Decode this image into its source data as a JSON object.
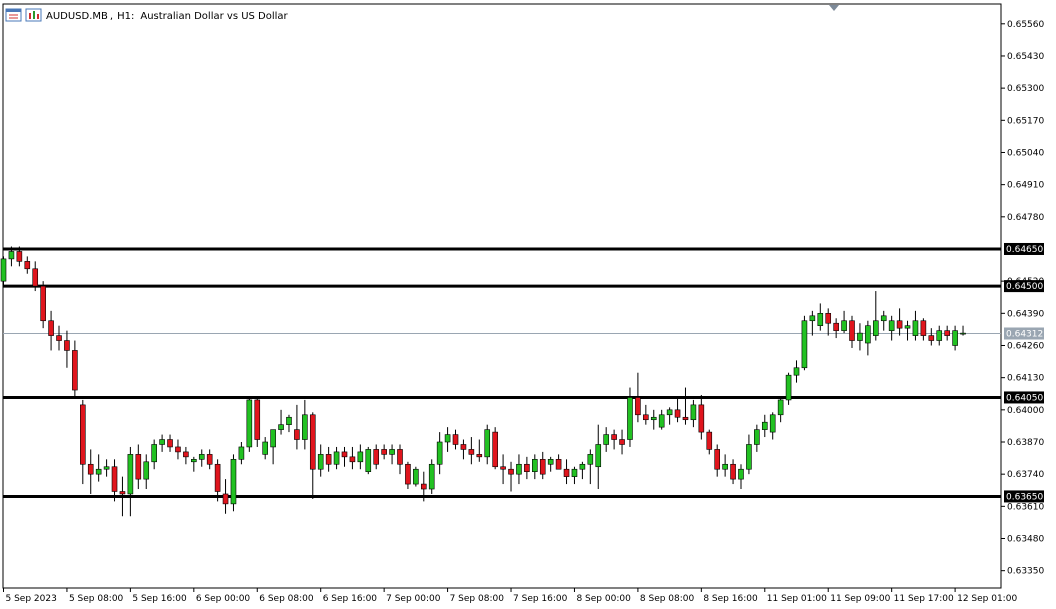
{
  "header": {
    "symbol": "AUDUSD.MB",
    "timeframe": "H1:",
    "description": "Australian Dollar vs US Dollar",
    "icon_names": [
      "window-list-icon",
      "chart-icon"
    ]
  },
  "colors": {
    "bull": "#22c122",
    "bear": "#e0151d",
    "wick": "#000000",
    "grid": "#000000",
    "bid_line": "#9aa6b2",
    "level_line": "#000000",
    "level_label_bg": "#000000",
    "price_label_bg": "#9aa6b2"
  },
  "chart_data": {
    "type": "candlestick",
    "symbol": "AUDUSD.MB",
    "period": "H1",
    "y_axis": {
      "ylim": [
        0.6328,
        0.6564
      ],
      "ticks": [
        "0.65560",
        "0.65430",
        "0.65300",
        "0.65170",
        "0.65040",
        "0.64910",
        "0.64780",
        "0.64520",
        "0.64390",
        "0.64260",
        "0.64130",
        "0.64000",
        "0.63870",
        "0.63740",
        "0.63610",
        "0.63480",
        "0.63350"
      ]
    },
    "x_axis": {
      "ticks": [
        {
          "label": "5 Sep 2023",
          "bar": 0
        },
        {
          "label": "5 Sep 08:00",
          "bar": 8
        },
        {
          "label": "5 Sep 16:00",
          "bar": 16
        },
        {
          "label": "6 Sep 00:00",
          "bar": 24
        },
        {
          "label": "6 Sep 08:00",
          "bar": 32
        },
        {
          "label": "6 Sep 16:00",
          "bar": 40
        },
        {
          "label": "7 Sep 00:00",
          "bar": 48
        },
        {
          "label": "7 Sep 08:00",
          "bar": 56
        },
        {
          "label": "7 Sep 16:00",
          "bar": 64
        },
        {
          "label": "8 Sep 00:00",
          "bar": 72
        },
        {
          "label": "8 Sep 08:00",
          "bar": 80
        },
        {
          "label": "8 Sep 16:00",
          "bar": 88
        },
        {
          "label": "11 Sep 01:00",
          "bar": 96
        },
        {
          "label": "11 Sep 09:00",
          "bar": 104
        },
        {
          "label": "11 Sep 17:00",
          "bar": 112
        },
        {
          "label": "12 Sep 01:00",
          "bar": 120
        }
      ]
    },
    "levels": [
      {
        "label": "0.64650",
        "value": 0.6465
      },
      {
        "label": "0.64500",
        "value": 0.645
      },
      {
        "label": "0.64050",
        "value": 0.6405
      },
      {
        "label": "0.63650",
        "value": 0.6365
      }
    ],
    "bid": {
      "label": "0.64312",
      "value": 0.64312
    },
    "candles": [
      [
        0.6452,
        0.6462,
        0.645,
        0.6461
      ],
      [
        0.6461,
        0.6466,
        0.6458,
        0.6464
      ],
      [
        0.6464,
        0.6466,
        0.6458,
        0.646
      ],
      [
        0.646,
        0.6462,
        0.6455,
        0.6457
      ],
      [
        0.6457,
        0.646,
        0.6448,
        0.645
      ],
      [
        0.645,
        0.6452,
        0.6433,
        0.6436
      ],
      [
        0.6436,
        0.644,
        0.6424,
        0.643
      ],
      [
        0.643,
        0.6434,
        0.6424,
        0.6428
      ],
      [
        0.6428,
        0.6432,
        0.6417,
        0.6424
      ],
      [
        0.6424,
        0.6428,
        0.6405,
        0.6408
      ],
      [
        0.6402,
        0.6404,
        0.637,
        0.6378
      ],
      [
        0.6378,
        0.6384,
        0.6366,
        0.6374
      ],
      [
        0.6374,
        0.6382,
        0.6371,
        0.6376
      ],
      [
        0.6376,
        0.638,
        0.6373,
        0.6377
      ],
      [
        0.6377,
        0.638,
        0.6363,
        0.6367
      ],
      [
        0.6367,
        0.6373,
        0.6357,
        0.6366
      ],
      [
        0.6366,
        0.6385,
        0.6357,
        0.6382
      ],
      [
        0.6382,
        0.6386,
        0.6368,
        0.6372
      ],
      [
        0.6372,
        0.6382,
        0.6368,
        0.6379
      ],
      [
        0.6379,
        0.6388,
        0.6376,
        0.6386
      ],
      [
        0.6386,
        0.639,
        0.6383,
        0.6388
      ],
      [
        0.6388,
        0.639,
        0.6383,
        0.6385
      ],
      [
        0.6385,
        0.6388,
        0.638,
        0.6383
      ],
      [
        0.6383,
        0.6385,
        0.6378,
        0.6381
      ],
      [
        0.6379,
        0.6381,
        0.6375,
        0.638
      ],
      [
        0.638,
        0.6384,
        0.6377,
        0.6382
      ],
      [
        0.6382,
        0.6384,
        0.6376,
        0.6378
      ],
      [
        0.6378,
        0.638,
        0.6363,
        0.6367
      ],
      [
        0.6366,
        0.6372,
        0.6358,
        0.6362
      ],
      [
        0.6362,
        0.6382,
        0.6359,
        0.638
      ],
      [
        0.638,
        0.6387,
        0.6378,
        0.6385
      ],
      [
        0.6385,
        0.6405,
        0.6383,
        0.6404
      ],
      [
        0.6404,
        0.6405,
        0.6385,
        0.6388
      ],
      [
        0.6382,
        0.6389,
        0.638,
        0.6387
      ],
      [
        0.6385,
        0.6392,
        0.6378,
        0.6392
      ],
      [
        0.6392,
        0.64,
        0.639,
        0.6394
      ],
      [
        0.6394,
        0.6398,
        0.6391,
        0.6397
      ],
      [
        0.6392,
        0.6402,
        0.6384,
        0.6388
      ],
      [
        0.6388,
        0.6404,
        0.6384,
        0.6398
      ],
      [
        0.6398,
        0.6399,
        0.6364,
        0.6376
      ],
      [
        0.6376,
        0.6386,
        0.6373,
        0.6382
      ],
      [
        0.6382,
        0.6385,
        0.6375,
        0.6378
      ],
      [
        0.6378,
        0.6385,
        0.6376,
        0.6383
      ],
      [
        0.6383,
        0.6385,
        0.6377,
        0.6381
      ],
      [
        0.6381,
        0.6385,
        0.6376,
        0.6379
      ],
      [
        0.6379,
        0.6386,
        0.6376,
        0.6383
      ],
      [
        0.6375,
        0.6385,
        0.6374,
        0.6384
      ],
      [
        0.6384,
        0.6386,
        0.6376,
        0.6378
      ],
      [
        0.6384,
        0.6386,
        0.638,
        0.6382
      ],
      [
        0.6382,
        0.6386,
        0.6378,
        0.6384
      ],
      [
        0.6384,
        0.6386,
        0.6374,
        0.6378
      ],
      [
        0.6378,
        0.6379,
        0.6368,
        0.637
      ],
      [
        0.637,
        0.6377,
        0.6369,
        0.6376
      ],
      [
        0.637,
        0.6375,
        0.6363,
        0.6368
      ],
      [
        0.6368,
        0.638,
        0.6366,
        0.6378
      ],
      [
        0.6378,
        0.6391,
        0.6374,
        0.6387
      ],
      [
        0.6387,
        0.6393,
        0.6383,
        0.639
      ],
      [
        0.639,
        0.6392,
        0.6384,
        0.6386
      ],
      [
        0.6386,
        0.6388,
        0.638,
        0.6384
      ],
      [
        0.6384,
        0.6389,
        0.6378,
        0.6382
      ],
      [
        0.6382,
        0.6388,
        0.6379,
        0.6381
      ],
      [
        0.6381,
        0.6394,
        0.6378,
        0.6392
      ],
      [
        0.6391,
        0.6393,
        0.6376,
        0.6377
      ],
      [
        0.6377,
        0.6382,
        0.637,
        0.6376
      ],
      [
        0.6376,
        0.6379,
        0.6367,
        0.6374
      ],
      [
        0.6374,
        0.6382,
        0.637,
        0.6378
      ],
      [
        0.6378,
        0.6381,
        0.6372,
        0.6375
      ],
      [
        0.6375,
        0.6382,
        0.6372,
        0.638
      ],
      [
        0.638,
        0.6383,
        0.6372,
        0.6374
      ],
      [
        0.6378,
        0.6381,
        0.6375,
        0.638
      ],
      [
        0.638,
        0.6382,
        0.6376,
        0.6376
      ],
      [
        0.6376,
        0.638,
        0.637,
        0.6373
      ],
      [
        0.6373,
        0.6377,
        0.637,
        0.6376
      ],
      [
        0.6376,
        0.6379,
        0.6372,
        0.6378
      ],
      [
        0.6378,
        0.6384,
        0.637,
        0.6382
      ],
      [
        0.6377,
        0.6394,
        0.6368,
        0.6386
      ],
      [
        0.6386,
        0.6393,
        0.6383,
        0.639
      ],
      [
        0.639,
        0.6392,
        0.6384,
        0.6388
      ],
      [
        0.6388,
        0.6392,
        0.6382,
        0.6386
      ],
      [
        0.6388,
        0.6409,
        0.6385,
        0.6405
      ],
      [
        0.6405,
        0.6415,
        0.6395,
        0.6398
      ],
      [
        0.6398,
        0.6402,
        0.6394,
        0.6396
      ],
      [
        0.6396,
        0.64,
        0.6392,
        0.6397
      ],
      [
        0.6393,
        0.64,
        0.6392,
        0.6398
      ],
      [
        0.6398,
        0.6401,
        0.6394,
        0.64
      ],
      [
        0.64,
        0.6405,
        0.6395,
        0.6397
      ],
      [
        0.6397,
        0.6409,
        0.6394,
        0.6396
      ],
      [
        0.6396,
        0.6404,
        0.6393,
        0.6402
      ],
      [
        0.6402,
        0.6406,
        0.6388,
        0.6391
      ],
      [
        0.6391,
        0.6392,
        0.6382,
        0.6384
      ],
      [
        0.6384,
        0.6386,
        0.6373,
        0.6376
      ],
      [
        0.6376,
        0.6382,
        0.6373,
        0.6378
      ],
      [
        0.6378,
        0.638,
        0.637,
        0.6372
      ],
      [
        0.6372,
        0.6378,
        0.6368,
        0.6376
      ],
      [
        0.6376,
        0.639,
        0.6374,
        0.6386
      ],
      [
        0.6386,
        0.6394,
        0.6383,
        0.6392
      ],
      [
        0.6392,
        0.6398,
        0.6389,
        0.6395
      ],
      [
        0.6391,
        0.6399,
        0.6388,
        0.6398
      ],
      [
        0.6398,
        0.6405,
        0.6395,
        0.6404
      ],
      [
        0.6404,
        0.6415,
        0.6402,
        0.6414
      ],
      [
        0.6414,
        0.642,
        0.6411,
        0.6417
      ],
      [
        0.6417,
        0.6438,
        0.6416,
        0.6436
      ],
      [
        0.6436,
        0.644,
        0.643,
        0.6438
      ],
      [
        0.6434,
        0.6443,
        0.6432,
        0.6439
      ],
      [
        0.6439,
        0.6441,
        0.643,
        0.6435
      ],
      [
        0.6435,
        0.6437,
        0.6429,
        0.6432
      ],
      [
        0.6432,
        0.644,
        0.6431,
        0.6436
      ],
      [
        0.6436,
        0.6438,
        0.6425,
        0.6428
      ],
      [
        0.6428,
        0.6435,
        0.6424,
        0.6431
      ],
      [
        0.6427,
        0.6436,
        0.6422,
        0.6434
      ],
      [
        0.643,
        0.6448,
        0.6428,
        0.6436
      ],
      [
        0.6436,
        0.644,
        0.6432,
        0.6438
      ],
      [
        0.6432,
        0.6438,
        0.6428,
        0.6436
      ],
      [
        0.6436,
        0.6441,
        0.643,
        0.6433
      ],
      [
        0.6433,
        0.6436,
        0.6428,
        0.6434
      ],
      [
        0.643,
        0.644,
        0.6428,
        0.6436
      ],
      [
        0.6436,
        0.6437,
        0.6428,
        0.643
      ],
      [
        0.643,
        0.6433,
        0.6426,
        0.6428
      ],
      [
        0.6428,
        0.6434,
        0.6426,
        0.6432
      ],
      [
        0.6432,
        0.6434,
        0.6428,
        0.643
      ],
      [
        0.6426,
        0.6434,
        0.6424,
        0.6432
      ],
      [
        0.6431,
        0.6434,
        0.643,
        0.6431
      ]
    ]
  }
}
